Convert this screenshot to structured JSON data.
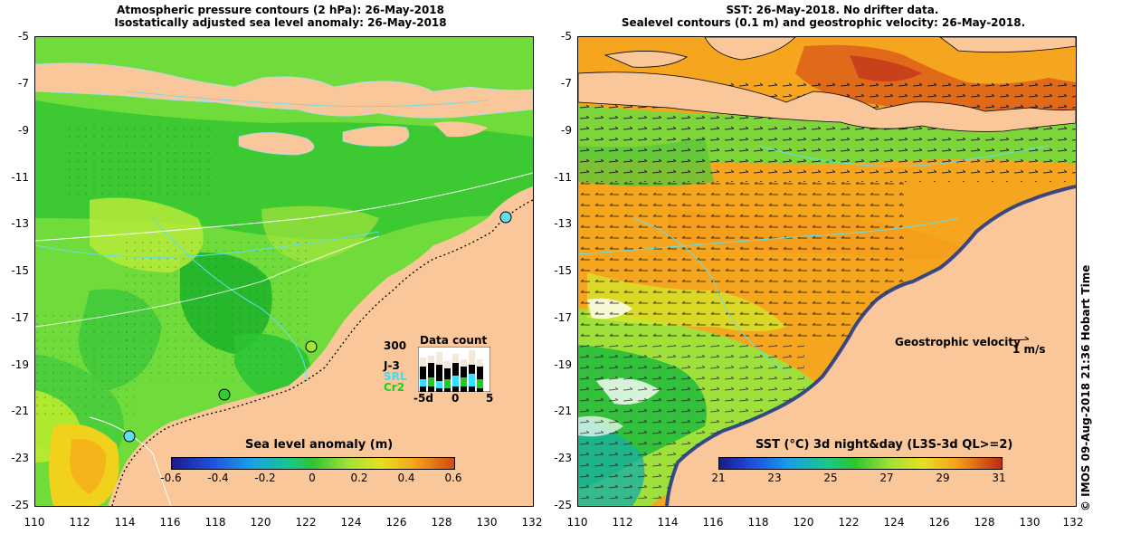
{
  "left_panel": {
    "title_line1": "Atmospheric pressure contours (2 hPa): 26-May-2018",
    "title_line2": "Isostatically adjusted sea level anomaly: 26-May-2018",
    "colorbar": {
      "title": "Sea level anomaly (m)",
      "labels": [
        "-0.6",
        "-0.4",
        "-0.2",
        "0",
        "0.2",
        "0.4",
        "0.6"
      ]
    },
    "data_count": {
      "title": "Data count",
      "max_label": "300",
      "series_labels": [
        "J-3",
        "SRL",
        "Cr2"
      ],
      "series_colors": [
        "#000000",
        "#33e0ff",
        "#22cc22"
      ],
      "x_labels": [
        "-5d",
        "0",
        "5"
      ]
    }
  },
  "right_panel": {
    "title_line1": "SST: 26-May-2018. No drifter data.",
    "title_line2": "Sealevel contours (0.1 m) and geostrophic velocity: 26-May-2018.",
    "velocity_label": "Geostrophic velocity",
    "velocity_scale": "1 m/s",
    "colorbar": {
      "title": "SST (°C) 3d night&day (L3S-3d QL>=2)",
      "labels": [
        "21",
        "23",
        "25",
        "27",
        "29",
        "31"
      ]
    }
  },
  "axes": {
    "y_labels": [
      "-5",
      "-7",
      "-9",
      "-11",
      "-13",
      "-15",
      "-17",
      "-19",
      "-21",
      "-23",
      "-25"
    ],
    "x_labels": [
      "110",
      "112",
      "114",
      "116",
      "118",
      "120",
      "122",
      "124",
      "126",
      "128",
      "130",
      "132"
    ]
  },
  "credit": "© IMOS 09-Aug-2018 21:36 Hobart Time",
  "colors": {
    "land": "#f9c79a",
    "sla_green": "#33cc33",
    "sst_orange": "#f7a81c"
  }
}
